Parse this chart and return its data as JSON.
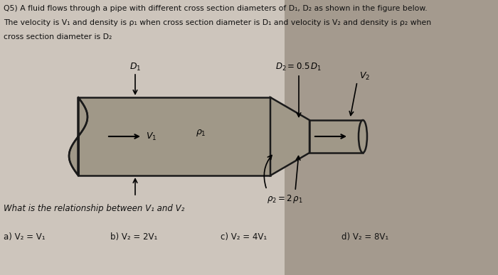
{
  "bg_color": "#cdc5bc",
  "text_color": "#111111",
  "question_text_line1": "Q5) A fluid flows through a pipe with different cross section diameters of D₁, D₂ as shown in the figure below.",
  "question_text_line2": "The velocity is V₁ and density is ρ₁ when cross section diameter is D₁ and velocity is V₂ and density is ρ₂ when",
  "question_text_line3": "cross section diameter is D₂",
  "pipe_fill": "#a09888",
  "pipe_edge": "#1a1a1a",
  "centerline_color": "#333333",
  "question_label": "What is the relationship between V₁ and V₂",
  "answers": [
    "a) V₂ = V₁",
    "b) V₂ = 2V₁",
    "c) V₂ = 4V₁",
    "d) V₂ = 8V₁"
  ],
  "shadow_color": "#7a6a5a"
}
